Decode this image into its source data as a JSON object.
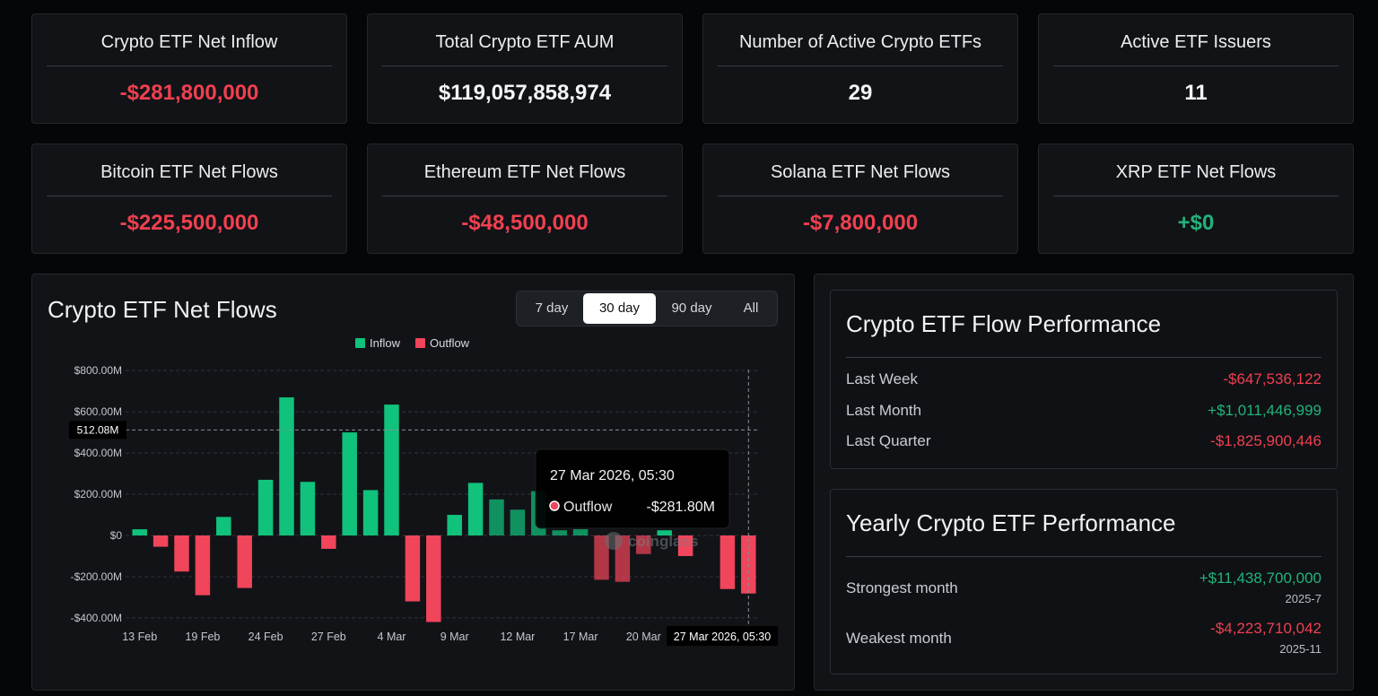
{
  "stats": [
    {
      "title": "Crypto ETF Net Inflow",
      "value": "-$281,800,000",
      "tone": "neg"
    },
    {
      "title": "Total Crypto ETF AUM",
      "value": "$119,057,858,974",
      "tone": "white"
    },
    {
      "title": "Number of Active Crypto ETFs",
      "value": "29",
      "tone": "white"
    },
    {
      "title": "Active ETF Issuers",
      "value": "11",
      "tone": "white"
    },
    {
      "title": "Bitcoin ETF Net Flows",
      "value": "-$225,500,000",
      "tone": "neg"
    },
    {
      "title": "Ethereum ETF Net Flows",
      "value": "-$48,500,000",
      "tone": "neg"
    },
    {
      "title": "Solana ETF Net Flows",
      "value": "-$7,800,000",
      "tone": "neg"
    },
    {
      "title": "XRP ETF Net Flows",
      "value": "+$0",
      "tone": "pos"
    }
  ],
  "flows_panel": {
    "title": "Crypto ETF Net Flows",
    "ranges": [
      "7 day",
      "30 day",
      "90 day",
      "All"
    ],
    "active_range": "30 day",
    "legend": {
      "inflow": "Inflow",
      "outflow": "Outflow"
    },
    "crosshair_value": "512.08M",
    "crosshair_date": "27 Mar 2026, 05:30",
    "watermark": "coinglass",
    "tooltip": {
      "date": "27 Mar 2026, 05:30",
      "label": "Outflow",
      "value": "-$281.80M"
    }
  },
  "colors": {
    "inflow": "#10c27c",
    "outflow": "#f0455a",
    "negative_text": "#f0404f",
    "positive_text": "#22b37a"
  },
  "chart_data": {
    "type": "bar",
    "title": "Crypto ETF Net Flows",
    "unit": "M",
    "ylim": [
      -420,
      800
    ],
    "y_ticks": [
      800,
      600,
      400,
      200,
      0,
      -200,
      -400
    ],
    "y_tick_labels": [
      "$800.00M",
      "$600.00M",
      "$400.00M",
      "$200.00M",
      "$0",
      "-$200.00M",
      "-$400.00M"
    ],
    "x_tick_labels": [
      "13 Feb",
      "19 Feb",
      "24 Feb",
      "27 Feb",
      "4 Mar",
      "9 Mar",
      "12 Mar",
      "17 Mar",
      "20 Mar"
    ],
    "x_tick_index": [
      0,
      3,
      6,
      9,
      12,
      15,
      18,
      21,
      24
    ],
    "series": [
      {
        "name": "Inflow",
        "values": [
          30,
          null,
          null,
          null,
          90,
          null,
          270,
          670,
          260,
          null,
          500,
          220,
          635,
          null,
          null,
          100,
          255,
          175,
          125,
          215,
          25,
          30,
          null,
          null,
          null,
          25,
          null,
          null,
          null,
          null
        ]
      },
      {
        "name": "Outflow",
        "values": [
          null,
          -55,
          -175,
          -290,
          null,
          -255,
          null,
          null,
          null,
          -65,
          null,
          null,
          null,
          -320,
          -420,
          null,
          null,
          null,
          null,
          null,
          null,
          null,
          -215,
          -225,
          -90,
          null,
          -100,
          null,
          -260,
          -281.8
        ]
      }
    ],
    "grid": true,
    "legend_position": "top-center"
  },
  "performance": {
    "title": "Crypto ETF Flow Performance",
    "rows": [
      {
        "label": "Last Week",
        "value": "-$647,536,122",
        "tone": "neg"
      },
      {
        "label": "Last Month",
        "value": "+$1,011,446,999",
        "tone": "pos"
      },
      {
        "label": "Last Quarter",
        "value": "-$1,825,900,446",
        "tone": "neg"
      }
    ]
  },
  "yearly": {
    "title": "Yearly Crypto ETF Performance",
    "strongest": {
      "label": "Strongest month",
      "value": "+$11,438,700,000",
      "period": "2025-7"
    },
    "weakest": {
      "label": "Weakest month",
      "value": "-$4,223,710,042",
      "period": "2025-11"
    }
  }
}
